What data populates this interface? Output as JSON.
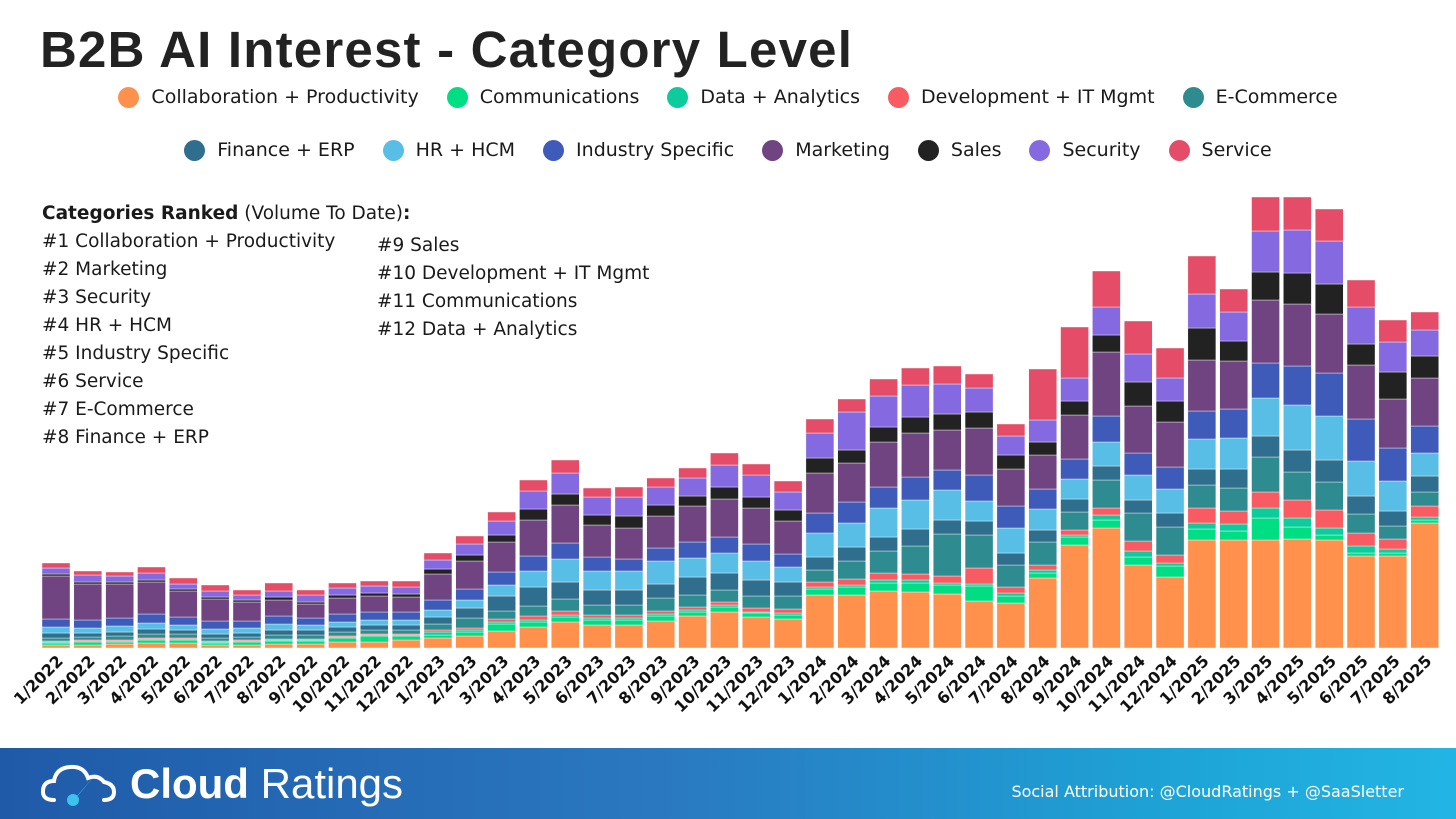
{
  "title": "B2B AI Interest - Category Level",
  "ranked": {
    "header_bold": "Categories Ranked",
    "header_normal": " (Volume To Date)",
    "header_colon": ":",
    "col1": [
      "#1 Collaboration + Productivity",
      "#2 Marketing",
      "#3 Security",
      "#4 HR + HCM",
      "#5 Industry Specific",
      "#6 Service",
      "#7 E-Commerce",
      "#8 Finance + ERP"
    ],
    "col2": [
      "#9 Sales",
      "#10 Development + IT Mgmt",
      "#11 Communications",
      "#12 Data + Analytics"
    ]
  },
  "footer": {
    "brand_bold": "Cloud",
    "brand_light": " Ratings",
    "attribution": "Social Attribution: @CloudRatings + @SaaSletter"
  },
  "chart_data": {
    "type": "bar",
    "stacked": true,
    "title": "B2B AI Interest - Category Level",
    "xlabel": "",
    "ylabel": "",
    "y_units": "relative interest (no axis shown)",
    "grid": false,
    "legend_placement": "top",
    "categories": [
      "1/2022",
      "2/2022",
      "3/2022",
      "4/2022",
      "5/2022",
      "6/2022",
      "7/2022",
      "8/2022",
      "9/2022",
      "10/2022",
      "11/2022",
      "12/2022",
      "1/2023",
      "2/2023",
      "3/2023",
      "4/2023",
      "5/2023",
      "6/2023",
      "7/2023",
      "8/2023",
      "9/2023",
      "10/2023",
      "11/2023",
      "12/2023",
      "1/2024",
      "2/2024",
      "3/2024",
      "4/2024",
      "5/2024",
      "6/2024",
      "7/2024",
      "8/2024",
      "9/2024",
      "10/2024",
      "11/2024",
      "12/2024",
      "1/2025",
      "2/2025",
      "3/2025",
      "4/2025",
      "5/2025",
      "6/2025",
      "7/2025",
      "8/2025"
    ],
    "series": [
      {
        "name": "Collaboration + Productivity",
        "color": "#FF914D",
        "values": [
          3,
          3,
          4,
          5,
          5,
          3,
          3,
          4,
          4,
          6,
          6,
          8,
          10,
          12,
          17,
          21,
          26,
          23,
          23,
          27,
          32,
          36,
          31,
          29,
          53,
          53,
          57,
          56,
          54,
          47,
          45,
          70,
          103,
          120,
          83,
          71,
          108,
          108,
          108,
          109,
          108,
          92,
          92,
          125
        ]
      },
      {
        "name": "Communications",
        "color": "#00DE84",
        "values": [
          2,
          3,
          2,
          3,
          3,
          2,
          3,
          3,
          3,
          4,
          6,
          4,
          3,
          4,
          7,
          5,
          5,
          5,
          5,
          5,
          4,
          5,
          4,
          4,
          6,
          8,
          8,
          9,
          9,
          15,
          7,
          5,
          8,
          8,
          8,
          11,
          11,
          9,
          22,
          12,
          5,
          3,
          3,
          3
        ]
      },
      {
        "name": "Data + Analytics",
        "color": "#0CCB9C",
        "values": [
          1,
          1,
          1,
          1,
          1,
          1,
          1,
          1,
          1,
          1,
          1,
          1,
          3,
          2,
          2,
          2,
          2,
          2,
          2,
          2,
          2,
          2,
          1,
          2,
          2,
          2,
          3,
          3,
          2,
          2,
          3,
          3,
          2,
          5,
          6,
          3,
          6,
          7,
          10,
          9,
          7,
          7,
          4,
          3
        ]
      },
      {
        "name": "Development + IT Mgmt",
        "color": "#F85C62",
        "values": [
          1,
          1,
          1,
          1,
          1,
          1,
          1,
          1,
          1,
          1,
          1,
          1,
          2,
          2,
          3,
          4,
          4,
          3,
          3,
          3,
          3,
          3,
          4,
          4,
          5,
          6,
          7,
          6,
          7,
          16,
          6,
          5,
          5,
          7,
          10,
          8,
          15,
          13,
          16,
          18,
          18,
          13,
          10,
          11
        ]
      },
      {
        "name": "E-Commerce",
        "color": "#2E8B8F",
        "values": [
          3,
          3,
          4,
          4,
          4,
          3,
          3,
          4,
          4,
          4,
          4,
          4,
          6,
          10,
          8,
          10,
          12,
          10,
          10,
          13,
          12,
          12,
          12,
          13,
          12,
          18,
          22,
          28,
          42,
          33,
          22,
          23,
          18,
          28,
          28,
          28,
          23,
          23,
          35,
          28,
          28,
          19,
          13,
          14
        ]
      },
      {
        "name": "Finance + ERP",
        "color": "#2F6E8C",
        "values": [
          5,
          4,
          4,
          5,
          4,
          4,
          4,
          5,
          5,
          5,
          5,
          5,
          7,
          10,
          15,
          19,
          17,
          15,
          15,
          14,
          18,
          17,
          16,
          14,
          13,
          14,
          14,
          17,
          14,
          14,
          12,
          12,
          13,
          14,
          13,
          14,
          16,
          19,
          21,
          22,
          22,
          18,
          15,
          16
        ]
      },
      {
        "name": "HR + HCM",
        "color": "#58BEE6",
        "values": [
          6,
          5,
          6,
          6,
          5,
          5,
          5,
          6,
          5,
          5,
          5,
          5,
          7,
          8,
          11,
          16,
          23,
          19,
          19,
          23,
          19,
          20,
          19,
          15,
          24,
          24,
          29,
          29,
          30,
          20,
          25,
          21,
          20,
          24,
          25,
          24,
          30,
          31,
          38,
          45,
          44,
          35,
          30,
          23
        ]
      },
      {
        "name": "Industry Specific",
        "color": "#3E5BBA",
        "values": [
          8,
          8,
          8,
          9,
          8,
          8,
          7,
          8,
          7,
          8,
          8,
          8,
          10,
          11,
          13,
          15,
          16,
          14,
          12,
          13,
          16,
          16,
          17,
          13,
          20,
          21,
          21,
          23,
          20,
          26,
          22,
          20,
          20,
          26,
          22,
          22,
          28,
          29,
          35,
          39,
          43,
          42,
          33,
          27
        ]
      },
      {
        "name": "Marketing",
        "color": "#6F4480",
        "values": [
          43,
          36,
          34,
          32,
          26,
          22,
          19,
          16,
          14,
          16,
          16,
          15,
          26,
          28,
          30,
          36,
          38,
          32,
          31,
          32,
          36,
          38,
          36,
          33,
          40,
          39,
          45,
          44,
          40,
          47,
          37,
          34,
          44,
          64,
          47,
          45,
          51,
          48,
          63,
          62,
          59,
          54,
          49,
          48
        ]
      },
      {
        "name": "Sales",
        "color": "#222222",
        "values": [
          2,
          2,
          2,
          2,
          2,
          2,
          2,
          3,
          2,
          3,
          3,
          3,
          5,
          6,
          7,
          11,
          11,
          10,
          12,
          11,
          10,
          12,
          11,
          11,
          15,
          13,
          15,
          16,
          16,
          16,
          14,
          13,
          14,
          17,
          24,
          21,
          32,
          20,
          28,
          31,
          30,
          21,
          27,
          22
        ]
      },
      {
        "name": "Security",
        "color": "#8469E0",
        "values": [
          6,
          7,
          6,
          7,
          5,
          6,
          5,
          6,
          7,
          7,
          7,
          7,
          9,
          11,
          14,
          18,
          21,
          18,
          19,
          18,
          18,
          22,
          22,
          18,
          25,
          38,
          31,
          32,
          30,
          24,
          19,
          22,
          23,
          28,
          28,
          23,
          34,
          29,
          41,
          43,
          43,
          37,
          30,
          26
        ]
      },
      {
        "name": "Service",
        "color": "#E44C67",
        "values": [
          5,
          4,
          4,
          6,
          6,
          6,
          5,
          8,
          5,
          5,
          5,
          6,
          7,
          8,
          9,
          11,
          13,
          9,
          10,
          9,
          10,
          12,
          11,
          11,
          14,
          13,
          17,
          17,
          18,
          14,
          12,
          51,
          51,
          36,
          33,
          30,
          38,
          23,
          34,
          33,
          32,
          27,
          22,
          18
        ]
      }
    ]
  }
}
